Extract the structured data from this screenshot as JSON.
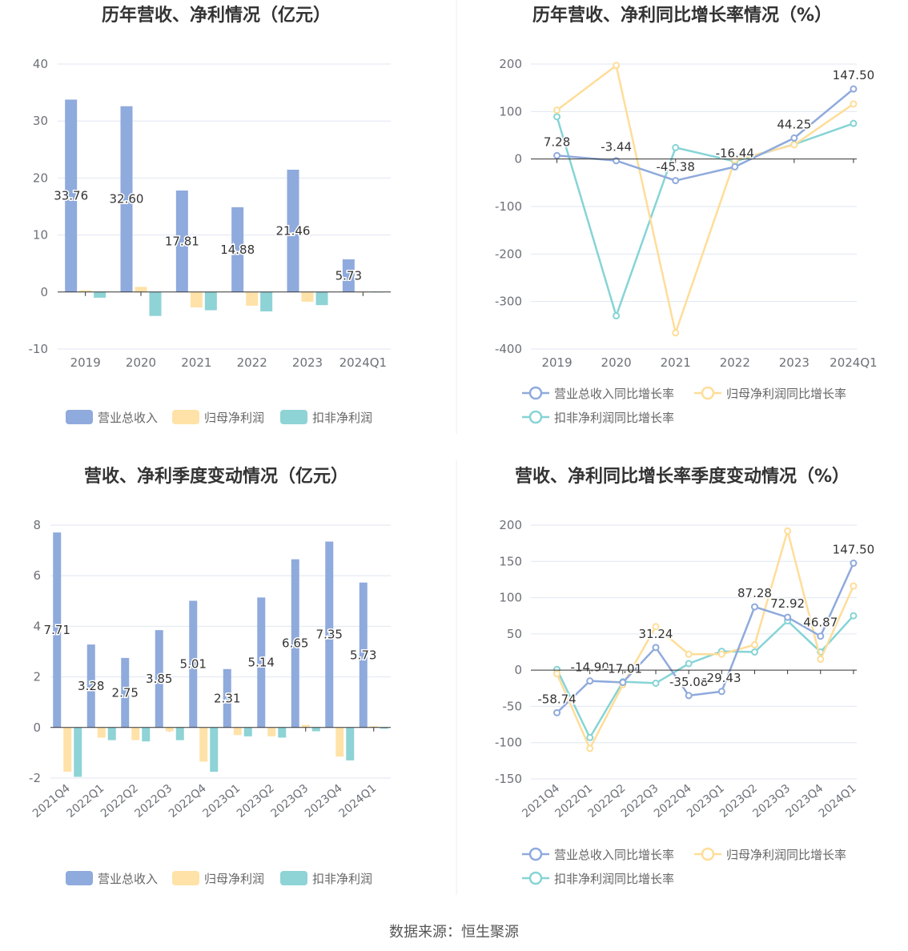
{
  "source": "数据来源：恒生聚源",
  "colors": {
    "revenue": "#8faadc",
    "net_profit": "#ffe2a8",
    "deducted_profit": "#8ed3d6",
    "revenue_line": "#8faadc",
    "net_line": "#ffdd99",
    "deducted_line": "#86d4d6",
    "axis": "#333333",
    "grid": "#e0e6f1",
    "tick": "#6e7079",
    "title": "#333333"
  },
  "chart_data": [
    {
      "type": "bar",
      "title": "历年营收、净利情况（亿元）",
      "categories": [
        "2019",
        "2020",
        "2021",
        "2022",
        "2023",
        "2024Q1"
      ],
      "yticks": [
        "40",
        "30",
        "20",
        "10",
        "0",
        "-10"
      ],
      "ylim": [
        -10,
        40
      ],
      "series": [
        {
          "name": "营业总收入",
          "values": [
            33.76,
            32.6,
            17.81,
            14.88,
            21.46,
            5.73
          ],
          "labels": [
            "33.76",
            "32.60",
            "17.81",
            "14.88",
            "21.46",
            "5.73"
          ]
        },
        {
          "name": "归母净利润",
          "values": [
            0.3,
            0.9,
            -2.7,
            -2.4,
            -1.7,
            0
          ]
        },
        {
          "name": "扣非净利润",
          "values": [
            -1.0,
            -4.2,
            -3.2,
            -3.4,
            -2.3,
            0
          ]
        }
      ],
      "legend": "bottom",
      "grid": true
    },
    {
      "type": "line",
      "title": "历年营收、净利同比增长率情况（%）",
      "categories": [
        "2019",
        "2020",
        "2021",
        "2022",
        "2023",
        "2024Q1"
      ],
      "yticks": [
        "200",
        "100",
        "0",
        "-100",
        "-200",
        "-300",
        "-400"
      ],
      "ylim": [
        -400,
        200
      ],
      "series": [
        {
          "name": "营业总收入同比增长率",
          "values": [
            7.28,
            -3.44,
            -45.38,
            -16.44,
            44.25,
            147.5
          ],
          "labels": [
            "7.28",
            "-3.44",
            "-45.38",
            "-16.44",
            "44.25",
            "147.50"
          ]
        },
        {
          "name": "归母净利润同比增长率",
          "values": [
            103,
            197,
            -366,
            -2,
            30,
            116
          ]
        },
        {
          "name": "扣非净利润同比增长率",
          "values": [
            89,
            -330,
            24,
            -5,
            31,
            75
          ]
        }
      ],
      "legend": "bottom",
      "grid": true
    },
    {
      "type": "bar",
      "title": "营收、净利季度变动情况（亿元）",
      "categories": [
        "2021Q4",
        "2022Q1",
        "2022Q2",
        "2022Q3",
        "2022Q4",
        "2023Q1",
        "2023Q2",
        "2023Q3",
        "2023Q4",
        "2024Q1"
      ],
      "yticks": [
        "8",
        "6",
        "4",
        "2",
        "0",
        "-2"
      ],
      "ylim": [
        -2,
        8
      ],
      "series": [
        {
          "name": "营业总收入",
          "values": [
            7.71,
            3.28,
            2.75,
            3.85,
            5.01,
            2.31,
            5.14,
            6.65,
            7.35,
            5.73
          ],
          "labels": [
            "7.71",
            "3.28",
            "2.75",
            "3.85",
            "5.01",
            "2.31",
            "5.14",
            "6.65",
            "7.35",
            "5.73"
          ]
        },
        {
          "name": "归母净利润",
          "values": [
            -1.75,
            -0.4,
            -0.5,
            -0.15,
            -1.35,
            -0.3,
            -0.35,
            0.1,
            -1.15,
            0.05
          ]
        },
        {
          "name": "扣非净利润",
          "values": [
            -1.95,
            -0.5,
            -0.55,
            -0.5,
            -1.75,
            -0.35,
            -0.4,
            -0.15,
            -1.3,
            -0.05
          ]
        }
      ],
      "legend": "bottom",
      "grid": true
    },
    {
      "type": "line",
      "title": "营收、净利同比增长率季度变动情况（%）",
      "categories": [
        "2021Q4",
        "2022Q1",
        "2022Q2",
        "2022Q3",
        "2022Q4",
        "2023Q1",
        "2023Q2",
        "2023Q3",
        "2023Q4",
        "2024Q1"
      ],
      "yticks": [
        "200",
        "150",
        "100",
        "50",
        "0",
        "-50",
        "-100",
        "-150"
      ],
      "ylim": [
        -150,
        200
      ],
      "series": [
        {
          "name": "营业总收入同比增长率",
          "values": [
            -58.74,
            -14.9,
            -17.01,
            31.24,
            -35.08,
            -29.43,
            87.28,
            72.92,
            46.87,
            147.5
          ],
          "labels": [
            "-58.74",
            "-14.90",
            "-17.01",
            "31.24",
            "-35.08",
            "-29.43",
            "87.28",
            "72.92",
            "46.87",
            "147.50"
          ]
        },
        {
          "name": "归母净利润同比增长率",
          "values": [
            -5,
            -108,
            -20,
            60,
            22,
            22,
            35,
            192,
            15,
            116
          ]
        },
        {
          "name": "扣非净利润同比增长率",
          "values": [
            1,
            -93,
            -16,
            -18,
            9,
            26,
            25,
            68,
            25,
            75
          ]
        }
      ],
      "legend": "bottom",
      "grid": true
    }
  ]
}
